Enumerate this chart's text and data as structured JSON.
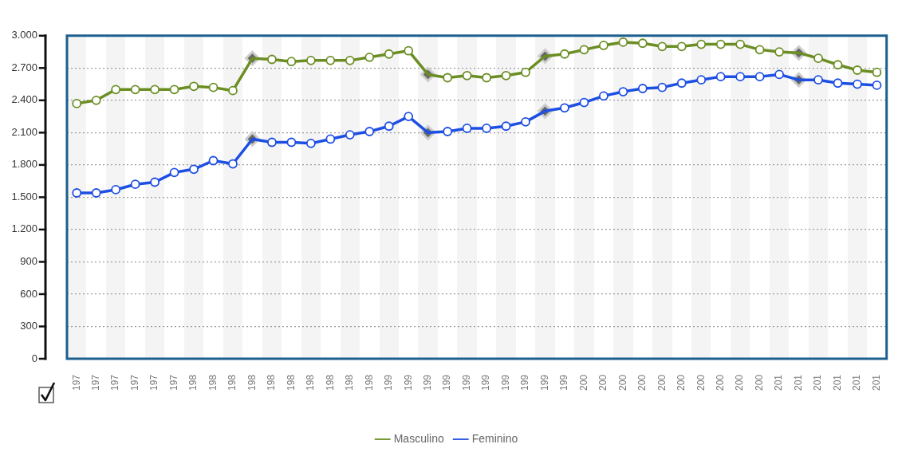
{
  "chart_data": {
    "type": "line",
    "categories": [
      "197",
      "197",
      "197",
      "197",
      "197",
      "197",
      "198",
      "198",
      "198",
      "198",
      "198",
      "198",
      "198",
      "198",
      "198",
      "198",
      "199",
      "199",
      "199",
      "199",
      "199",
      "199",
      "199",
      "199",
      "199",
      "199",
      "200",
      "200",
      "200",
      "200",
      "200",
      "200",
      "200",
      "200",
      "200",
      "200",
      "201",
      "201",
      "201",
      "201",
      "201",
      "201"
    ],
    "series": [
      {
        "name": "Masculino",
        "color": "#6b8e23",
        "values": [
          2370,
          2400,
          2500,
          2500,
          2500,
          2500,
          2530,
          2520,
          2490,
          2790,
          2780,
          2760,
          2770,
          2770,
          2770,
          2800,
          2830,
          2860,
          2640,
          2610,
          2630,
          2610,
          2630,
          2660,
          2810,
          2830,
          2870,
          2910,
          2940,
          2930,
          2900,
          2900,
          2920,
          2920,
          2920,
          2870,
          2850,
          2840,
          2790,
          2730,
          2680,
          2660
        ]
      },
      {
        "name": "Feminino",
        "color": "#1e4fe3",
        "values": [
          1540,
          1540,
          1570,
          1620,
          1640,
          1730,
          1760,
          1840,
          1810,
          2040,
          2010,
          2010,
          2000,
          2040,
          2080,
          2110,
          2160,
          2250,
          2100,
          2110,
          2140,
          2140,
          2160,
          2200,
          2300,
          2330,
          2380,
          2440,
          2480,
          2510,
          2520,
          2560,
          2590,
          2620,
          2620,
          2620,
          2640,
          2590,
          2590,
          2560,
          2550,
          2540
        ]
      },
      {
        "type": "scatter",
        "marker": "diamond",
        "color": "#666666",
        "values": [
          null,
          null,
          null,
          null,
          null,
          null,
          null,
          null,
          null,
          2790,
          null,
          null,
          null,
          null,
          null,
          null,
          null,
          null,
          2640,
          null,
          null,
          null,
          null,
          null,
          2810,
          null,
          null,
          null,
          null,
          null,
          null,
          null,
          null,
          null,
          null,
          null,
          null,
          2840,
          null,
          null,
          null,
          null
        ]
      },
      {
        "type": "scatter",
        "marker": "diamond",
        "color": "#666666",
        "values": [
          null,
          null,
          null,
          null,
          null,
          null,
          null,
          null,
          null,
          2040,
          null,
          null,
          null,
          null,
          null,
          null,
          null,
          null,
          2100,
          null,
          null,
          null,
          null,
          null,
          2300,
          null,
          null,
          null,
          null,
          null,
          null,
          null,
          null,
          null,
          null,
          null,
          null,
          2590,
          null,
          null,
          null,
          null
        ]
      }
    ],
    "ylim": [
      0,
      3000
    ],
    "yticks": [
      0,
      300,
      600,
      900,
      {
        "value": 1200,
        "label": "1.200"
      },
      {
        "value": 1500,
        "label": "1.500"
      },
      {
        "value": 1800,
        "label": "1.800"
      },
      {
        "value": 2100,
        "label": "2.100"
      },
      {
        "value": 2400,
        "label": "2.400"
      },
      {
        "value": 2700,
        "label": "2.700"
      },
      {
        "value": 3000,
        "label": "3.000"
      }
    ],
    "grid": "y",
    "legend": "bottom",
    "marker": "circle"
  }
}
